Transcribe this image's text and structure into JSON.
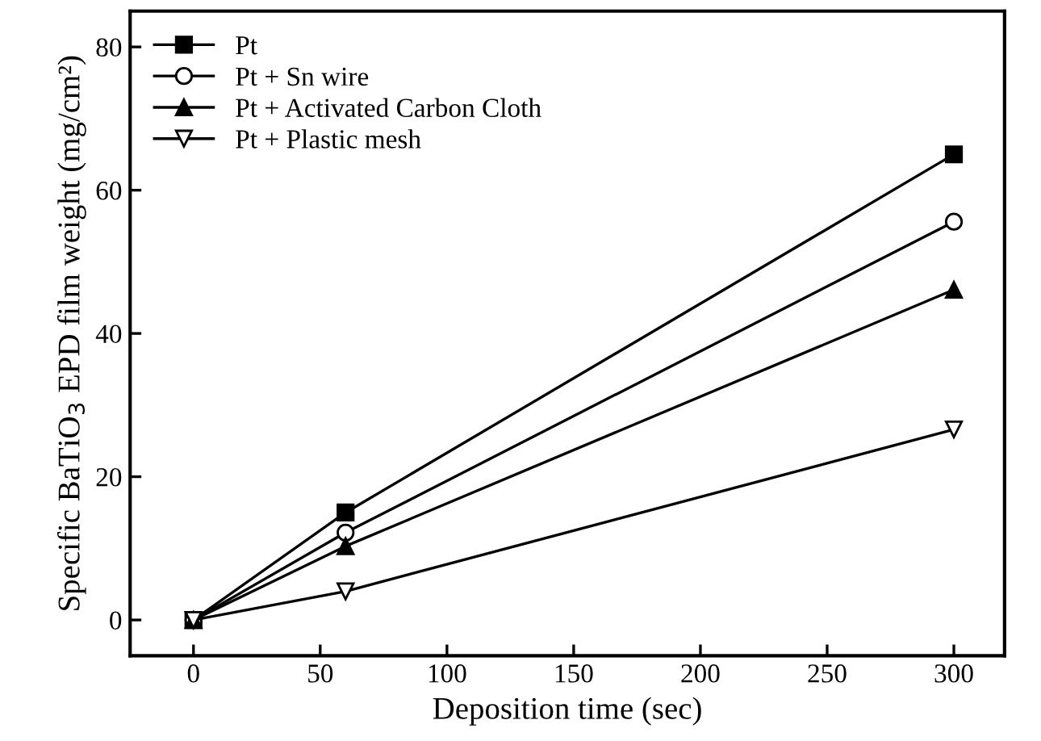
{
  "chart_data": {
    "type": "line",
    "xlabel": "Deposition time (sec)",
    "ylabel": "Specific BaTiO$_{3}$ EPD film weight (mg/cm²)",
    "x": [
      0,
      60,
      300
    ],
    "series": [
      {
        "name": "Pt",
        "color": "#000000",
        "marker": "square",
        "values": [
          0,
          15,
          65
        ]
      },
      {
        "name": "Pt + Sn wire",
        "color": "#000000",
        "marker": "circle",
        "values": [
          0,
          12.2,
          55.6
        ]
      },
      {
        "name": "Pt + Activated Carbon Cloth",
        "color": "#000000",
        "marker": "triangle",
        "values": [
          0,
          10.3,
          46.1
        ]
      },
      {
        "name": "Pt + Plastic mesh",
        "color": "#000000",
        "marker": "triangle_down",
        "values": [
          0,
          4,
          26.6
        ]
      }
    ],
    "xlim": [
      -25,
      320
    ],
    "ylim": [
      -5,
      85
    ],
    "xticks": [
      0,
      50,
      100,
      150,
      200,
      250,
      300
    ],
    "yticks": [
      0,
      20,
      40,
      60,
      80
    ],
    "grid": false,
    "legend": "top left",
    "line_style": "solid"
  }
}
